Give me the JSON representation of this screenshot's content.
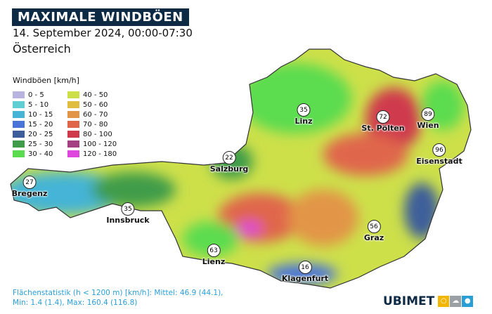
{
  "header": {
    "title": "MAXIMALE WINDBÖEN",
    "date": "14. September 2024, 00:00-07:30",
    "region": "Österreich"
  },
  "legend": {
    "title": "Windböen [km/h]",
    "items": [
      {
        "label": "0 - 5",
        "color": "#b7b5e0"
      },
      {
        "label": "5 - 10",
        "color": "#5fcfd4"
      },
      {
        "label": "10 - 15",
        "color": "#45b4d6"
      },
      {
        "label": "15 - 20",
        "color": "#4b74d8"
      },
      {
        "label": "20 - 25",
        "color": "#3d5e9a"
      },
      {
        "label": "25 - 30",
        "color": "#3f9c4a"
      },
      {
        "label": "30 - 40",
        "color": "#5bdc4f"
      },
      {
        "label": "40 - 50",
        "color": "#cde04a"
      },
      {
        "label": "50 - 60",
        "color": "#e0bd3f"
      },
      {
        "label": "60 - 70",
        "color": "#e29547"
      },
      {
        "label": "70 - 80",
        "color": "#e0664b"
      },
      {
        "label": "80 - 100",
        "color": "#cf3b4d"
      },
      {
        "label": "100 - 120",
        "color": "#a54083"
      },
      {
        "label": "120 - 180",
        "color": "#de46de"
      }
    ]
  },
  "cities": [
    {
      "name": "Bregenz",
      "value": "27"
    },
    {
      "name": "Innsbruck",
      "value": "35"
    },
    {
      "name": "Salzburg",
      "value": "22"
    },
    {
      "name": "Linz",
      "value": "35"
    },
    {
      "name": "St. Pölten",
      "value": "72"
    },
    {
      "name": "Wien",
      "value": "89"
    },
    {
      "name": "Eisenstadt",
      "value": "96"
    },
    {
      "name": "Graz",
      "value": "56"
    },
    {
      "name": "Lienz",
      "value": "63"
    },
    {
      "name": "Klagenfurt",
      "value": "16"
    }
  ],
  "stats": {
    "line1": "Flächenstatistik (h < 1200 m) [km/h]: Mittel: 46.9 (44.1),",
    "line2": "Min: 1.4 (1.4), Max: 160.4 (116.8)"
  },
  "logo": {
    "text": "UBIMET",
    "icons": [
      "sun-icon",
      "cloud-icon",
      "drop-icon"
    ],
    "colors": [
      "#f2b600",
      "#9aa0a6",
      "#2a9fd6"
    ]
  }
}
